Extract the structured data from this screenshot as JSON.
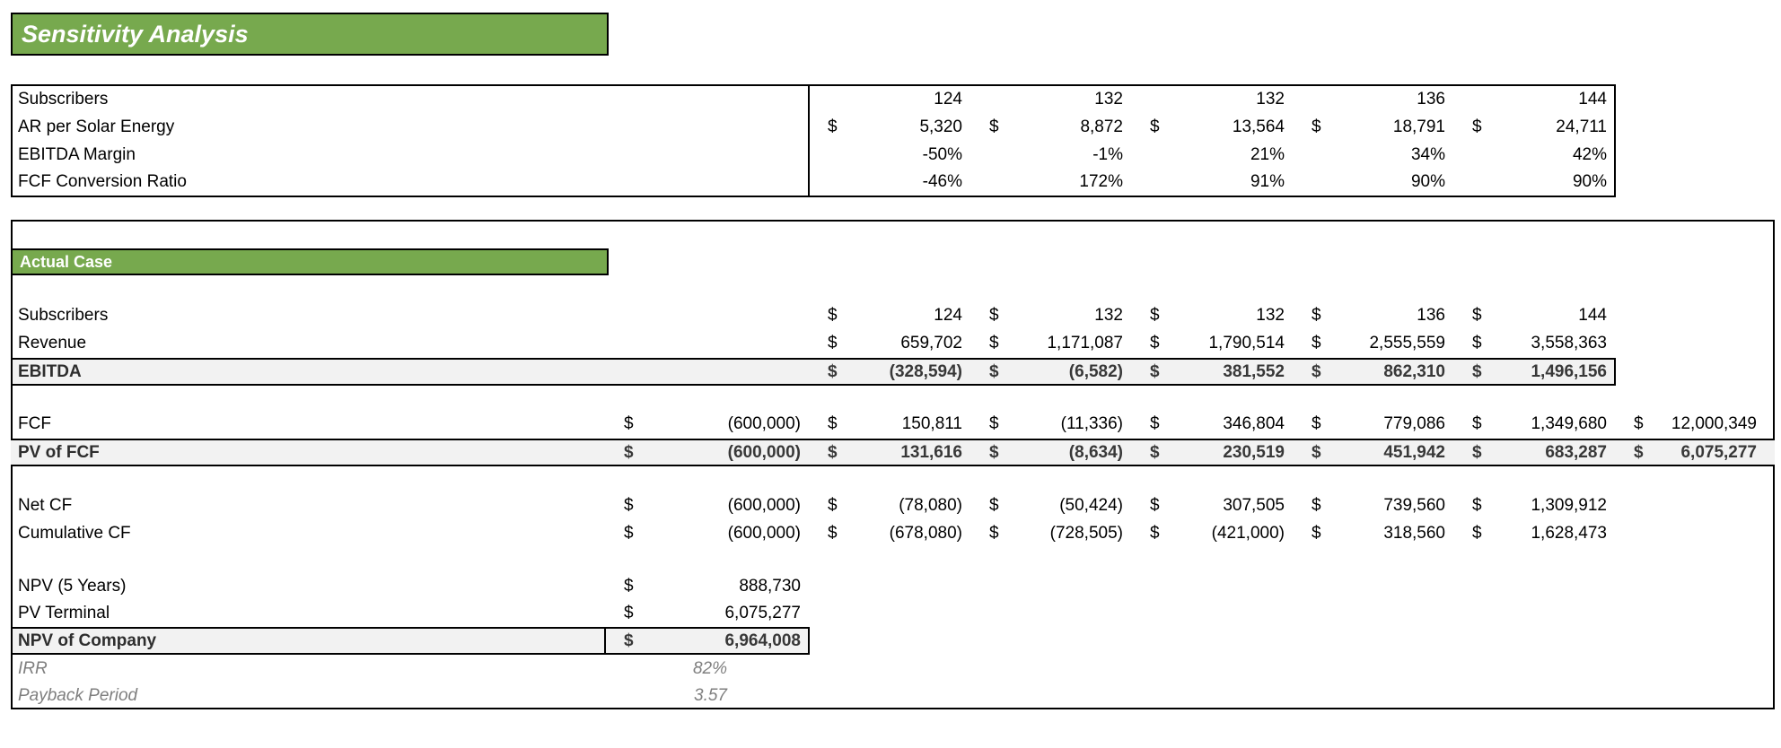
{
  "currency_symbol": "$",
  "colors": {
    "header_green": "#77A94E",
    "row_shade": "#F2F2F2",
    "muted_text": "#7F7F7F"
  },
  "title": "Sensitivity Analysis",
  "drivers_table": {
    "rows": [
      {
        "label": "Subscribers",
        "values": [
          "124",
          "132",
          "132",
          "136",
          "144"
        ]
      },
      {
        "label": "AR per Solar Energy",
        "values": [
          "5,320",
          "8,872",
          "13,564",
          "18,791",
          "24,711"
        ]
      },
      {
        "label": "EBITDA Margin",
        "values": [
          "-50%",
          "-1%",
          "21%",
          "34%",
          "42%"
        ]
      },
      {
        "label": "FCF Conversion Ratio",
        "values": [
          "-46%",
          "172%",
          "91%",
          "90%",
          "90%"
        ]
      }
    ]
  },
  "actual_case": {
    "header": "Actual Case",
    "subscribers": {
      "label": "Subscribers",
      "values": [
        "124",
        "132",
        "132",
        "136",
        "144"
      ]
    },
    "revenue": {
      "label": "Revenue",
      "values": [
        "659,702",
        "1,171,087",
        "1,790,514",
        "2,555,559",
        "3,558,363"
      ]
    },
    "ebitda": {
      "label": "EBITDA",
      "values": [
        "(328,594)",
        "(6,582)",
        "381,552",
        "862,310",
        "1,496,156"
      ]
    },
    "fcf": {
      "label": "FCF",
      "values": [
        "(600,000)",
        "150,811",
        "(11,336)",
        "346,804",
        "779,086",
        "1,349,680",
        "12,000,349"
      ]
    },
    "pv_of_fcf": {
      "label": "PV of FCF",
      "values": [
        "(600,000)",
        "131,616",
        "(8,634)",
        "230,519",
        "451,942",
        "683,287",
        "6,075,277"
      ]
    },
    "net_cf": {
      "label": "Net CF",
      "values": [
        "(600,000)",
        "(78,080)",
        "(50,424)",
        "307,505",
        "739,560",
        "1,309,912"
      ]
    },
    "cumulative_cf": {
      "label": "Cumulative CF",
      "values": [
        "(600,000)",
        "(678,080)",
        "(728,505)",
        "(421,000)",
        "318,560",
        "1,628,473"
      ]
    },
    "npv_5_years": {
      "label": "NPV (5 Years)",
      "values": [
        "888,730"
      ]
    },
    "pv_terminal": {
      "label": "PV Terminal",
      "values": [
        "6,075,277"
      ]
    },
    "npv_of_company": {
      "label": "NPV of Company",
      "values": [
        "6,964,008"
      ]
    },
    "irr": {
      "label": "IRR",
      "values": [
        "82%"
      ]
    },
    "payback_period": {
      "label": "Payback Period",
      "values": [
        "3.57"
      ]
    }
  }
}
